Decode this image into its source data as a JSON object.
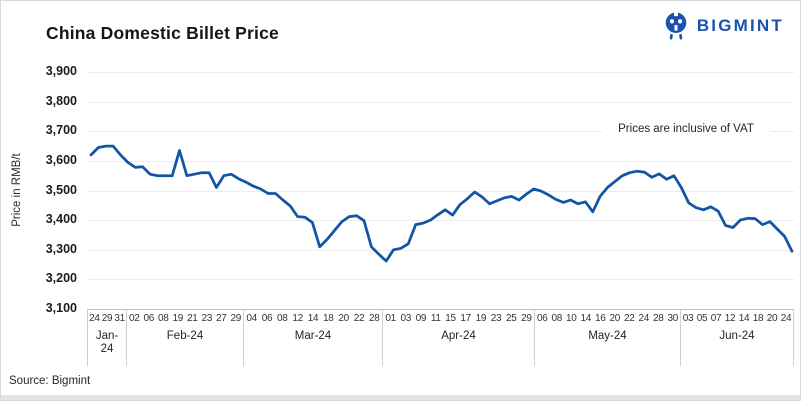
{
  "page": {
    "title": "China Domestic Billet Price",
    "brand": "BIGMINT",
    "source": "Source: Bigmint"
  },
  "chart_data": {
    "type": "line",
    "title": "China Domestic Billet Price",
    "ylabel": "Price in RMB/t",
    "ylim": [
      3100,
      3900
    ],
    "ytick_step": 100,
    "y_ticks": [
      "3,900",
      "3,800",
      "3,700",
      "3,600",
      "3,500",
      "3,400",
      "3,300",
      "3,200",
      "3,100"
    ],
    "annotation": "Prices are inclusive of VAT",
    "grid": "horizontal",
    "legend_position": "none",
    "colors": {
      "line": "#1254a6",
      "brand_blue": "#1b52af"
    },
    "x_axis": {
      "months": [
        {
          "label": "Jan-24",
          "days": [
            "24",
            "29",
            "31"
          ]
        },
        {
          "label": "Feb-24",
          "days": [
            "02",
            "06",
            "08",
            "19",
            "21",
            "23",
            "27",
            "29"
          ]
        },
        {
          "label": "Mar-24",
          "days": [
            "04",
            "06",
            "08",
            "12",
            "14",
            "18",
            "20",
            "22",
            "28"
          ]
        },
        {
          "label": "Apr-24",
          "days": [
            "01",
            "03",
            "09",
            "11",
            "15",
            "17",
            "19",
            "23",
            "25",
            "29"
          ]
        },
        {
          "label": "May-24",
          "days": [
            "06",
            "08",
            "10",
            "14",
            "16",
            "20",
            "22",
            "24",
            "28",
            "30"
          ]
        },
        {
          "label": "Jun-24",
          "days": [
            "03",
            "05",
            "07",
            "12",
            "14",
            "18",
            "20",
            "24"
          ]
        }
      ]
    },
    "series": [
      {
        "name": "China Domestic Billet Price",
        "unit": "RMB/t",
        "points_per_label": 2,
        "values": [
          3620,
          3645,
          3650,
          3650,
          3620,
          3595,
          3578,
          3580,
          3555,
          3550,
          3550,
          3550,
          3635,
          3550,
          3555,
          3560,
          3560,
          3510,
          3550,
          3555,
          3540,
          3528,
          3515,
          3505,
          3490,
          3490,
          3468,
          3448,
          3412,
          3410,
          3392,
          3310,
          3335,
          3365,
          3395,
          3412,
          3415,
          3398,
          3310,
          3285,
          3262,
          3300,
          3305,
          3320,
          3385,
          3390,
          3400,
          3418,
          3435,
          3417,
          3452,
          3472,
          3495,
          3478,
          3455,
          3465,
          3475,
          3480,
          3468,
          3488,
          3505,
          3498,
          3485,
          3470,
          3460,
          3468,
          3455,
          3462,
          3428,
          3480,
          3510,
          3530,
          3550,
          3560,
          3565,
          3562,
          3545,
          3556,
          3538,
          3550,
          3510,
          3458,
          3442,
          3435,
          3445,
          3430,
          3382,
          3375,
          3400,
          3406,
          3405,
          3385,
          3395,
          3370,
          3345,
          3295
        ]
      }
    ]
  }
}
